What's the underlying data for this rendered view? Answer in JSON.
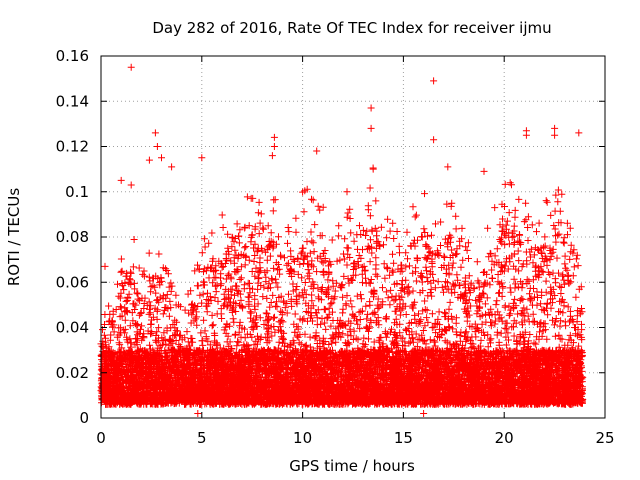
{
  "chart_data": {
    "type": "scatter",
    "title": "Day 282 of 2016, Rate Of TEC Index for receiver ijmu",
    "xlabel": "GPS time / hours",
    "ylabel": "ROTI / TECUs",
    "xlim": [
      0,
      25
    ],
    "ylim": [
      0,
      0.16
    ],
    "xticks": [
      0,
      5,
      10,
      15,
      20,
      25
    ],
    "yticks": [
      0,
      0.02,
      0.04,
      0.06,
      0.08,
      0.1,
      0.12,
      0.14,
      0.16
    ],
    "xtick_labels": [
      "0",
      "5",
      "10",
      "15",
      "20",
      "25"
    ],
    "ytick_labels": [
      "0",
      "0.02",
      "0.04",
      "0.06",
      "0.08",
      "0.1",
      "0.12",
      "0.14",
      "0.16"
    ],
    "grid": true,
    "marker": "+",
    "series": [
      {
        "name": "ROTI",
        "color": "#ff0000",
        "notable_points": [
          {
            "x": 1.5,
            "y": 0.155
          },
          {
            "x": 1.0,
            "y": 0.105
          },
          {
            "x": 1.5,
            "y": 0.103
          },
          {
            "x": 2.4,
            "y": 0.114
          },
          {
            "x": 2.7,
            "y": 0.126
          },
          {
            "x": 2.8,
            "y": 0.12
          },
          {
            "x": 3.0,
            "y": 0.115
          },
          {
            "x": 3.5,
            "y": 0.111
          },
          {
            "x": 5.0,
            "y": 0.115
          },
          {
            "x": 8.6,
            "y": 0.124
          },
          {
            "x": 8.6,
            "y": 0.12
          },
          {
            "x": 8.5,
            "y": 0.116
          },
          {
            "x": 10.7,
            "y": 0.118
          },
          {
            "x": 12.2,
            "y": 0.1
          },
          {
            "x": 13.4,
            "y": 0.137
          },
          {
            "x": 13.4,
            "y": 0.128
          },
          {
            "x": 13.5,
            "y": 0.11
          },
          {
            "x": 16.5,
            "y": 0.149
          },
          {
            "x": 16.5,
            "y": 0.123
          },
          {
            "x": 17.2,
            "y": 0.111
          },
          {
            "x": 19.0,
            "y": 0.109
          },
          {
            "x": 21.1,
            "y": 0.127
          },
          {
            "x": 21.1,
            "y": 0.125
          },
          {
            "x": 22.5,
            "y": 0.128
          },
          {
            "x": 22.5,
            "y": 0.125
          },
          {
            "x": 23.7,
            "y": 0.126
          },
          {
            "x": 0.2,
            "y": 0.067
          },
          {
            "x": 20.3,
            "y": 0.104
          },
          {
            "x": 4.8,
            "y": 0.002
          },
          {
            "x": 16.0,
            "y": 0.002
          }
        ],
        "envelope_hours": [
          0,
          0.5,
          1,
          1.5,
          2,
          2.5,
          3,
          3.5,
          4,
          4.5,
          5,
          5.5,
          6,
          6.5,
          7,
          7.5,
          8,
          8.5,
          9,
          9.5,
          10,
          10.5,
          11,
          11.5,
          12,
          12.5,
          13,
          13.5,
          14,
          14.5,
          15,
          15.5,
          16,
          16.5,
          17,
          17.5,
          18,
          18.5,
          19,
          19.5,
          20,
          20.5,
          21,
          21.5,
          22,
          22.5,
          23,
          23.5,
          24
        ],
        "envelope_typical_max": [
          0.035,
          0.045,
          0.06,
          0.07,
          0.055,
          0.065,
          0.06,
          0.05,
          0.04,
          0.05,
          0.065,
          0.07,
          0.075,
          0.08,
          0.085,
          0.085,
          0.08,
          0.085,
          0.07,
          0.075,
          0.085,
          0.09,
          0.08,
          0.07,
          0.075,
          0.08,
          0.07,
          0.095,
          0.07,
          0.08,
          0.065,
          0.08,
          0.085,
          0.075,
          0.085,
          0.08,
          0.07,
          0.06,
          0.065,
          0.08,
          0.09,
          0.085,
          0.08,
          0.075,
          0.08,
          0.085,
          0.09,
          0.07,
          0.04
        ],
        "dense_band": [
          0.006,
          0.03
        ]
      }
    ]
  }
}
